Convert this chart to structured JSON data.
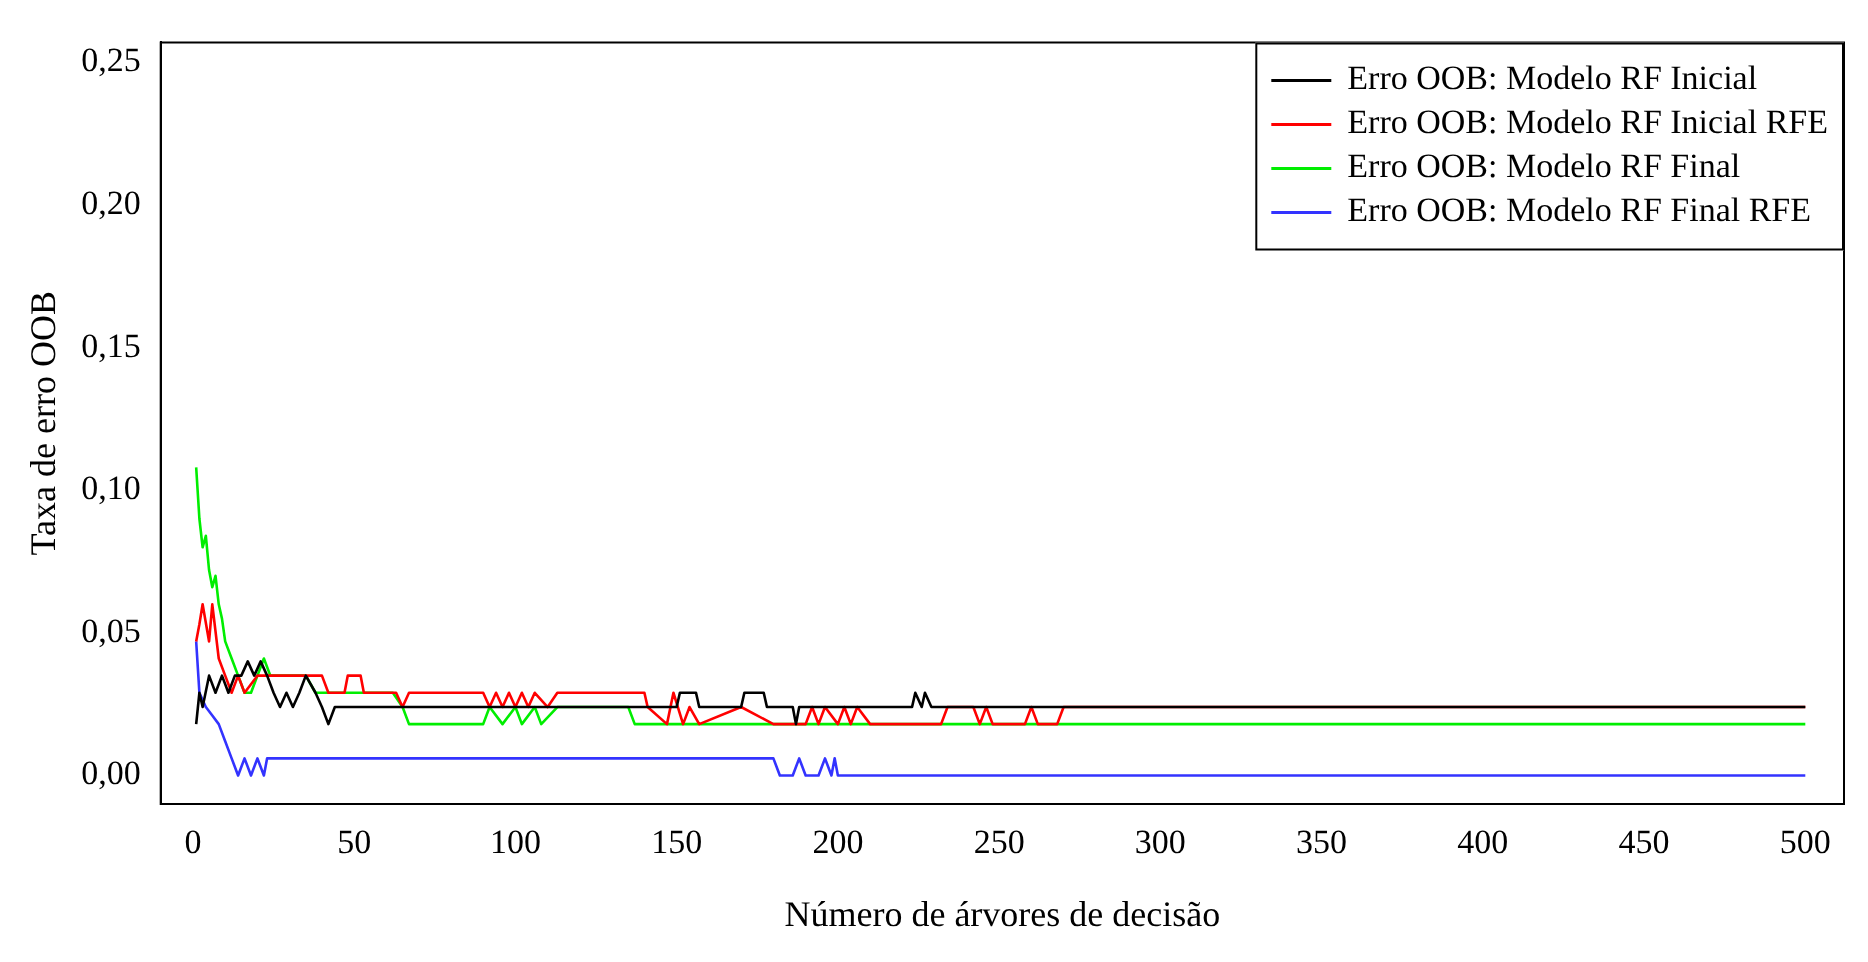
{
  "chart_data": {
    "type": "line",
    "xlabel": "Número de árvores de decisão",
    "ylabel": "Taxa de erro OOB",
    "xlim": [
      -10,
      512
    ],
    "ylim": [
      -0.01,
      0.257
    ],
    "xticks": [
      0,
      50,
      100,
      150,
      200,
      250,
      300,
      350,
      400,
      450,
      500
    ],
    "yticks": [
      {
        "value": 0,
        "label": "0,00"
      },
      {
        "value": 0.05,
        "label": "0,05"
      },
      {
        "value": 0.1,
        "label": "0,10"
      },
      {
        "value": 0.15,
        "label": "0,15"
      },
      {
        "value": 0.2,
        "label": "0,20"
      },
      {
        "value": 0.25,
        "label": "0,25"
      }
    ],
    "legend": "top right",
    "grid": false,
    "marker": "none",
    "line_style": "solid",
    "series": [
      {
        "name": "Erro OOB: Modelo RF Inicial",
        "color": "#000000",
        "x": [
          1,
          2,
          3,
          5,
          7,
          9,
          11,
          13,
          15,
          17,
          19,
          21,
          23,
          25,
          27,
          29,
          31,
          33,
          35,
          38,
          40,
          42,
          44,
          48,
          150,
          151,
          156,
          157,
          170,
          171,
          177,
          178,
          186,
          187,
          188,
          223,
          224,
          226,
          227,
          229,
          500
        ],
        "values": [
          0.018,
          0.029,
          0.024,
          0.035,
          0.029,
          0.035,
          0.029,
          0.035,
          0.035,
          0.04,
          0.035,
          0.04,
          0.035,
          0.029,
          0.024,
          0.029,
          0.024,
          0.029,
          0.035,
          0.029,
          0.024,
          0.018,
          0.024,
          0.024,
          0.024,
          0.029,
          0.029,
          0.024,
          0.024,
          0.029,
          0.029,
          0.024,
          0.024,
          0.018,
          0.024,
          0.024,
          0.029,
          0.024,
          0.029,
          0.024,
          0.024
        ]
      },
      {
        "name": "Erro OOB: Modelo RF Inicial RFE",
        "color": "#ff0000",
        "x": [
          1,
          2,
          3,
          5,
          6,
          8,
          10,
          12,
          14,
          16,
          20,
          40,
          42,
          47,
          48,
          52,
          53,
          63,
          65,
          67,
          90,
          92,
          94,
          96,
          98,
          100,
          102,
          104,
          106,
          110,
          113,
          140,
          141,
          147,
          149,
          152,
          154,
          157,
          170,
          180,
          190,
          192,
          194,
          196,
          200,
          202,
          204,
          206,
          210,
          232,
          234,
          242,
          244,
          246,
          248,
          258,
          260,
          262,
          268,
          270,
          500
        ],
        "values": [
          0.047,
          0.053,
          0.06,
          0.047,
          0.06,
          0.041,
          0.035,
          0.029,
          0.035,
          0.029,
          0.035,
          0.035,
          0.029,
          0.029,
          0.035,
          0.035,
          0.029,
          0.029,
          0.024,
          0.029,
          0.029,
          0.024,
          0.029,
          0.024,
          0.029,
          0.024,
          0.029,
          0.024,
          0.029,
          0.024,
          0.029,
          0.029,
          0.024,
          0.018,
          0.029,
          0.018,
          0.024,
          0.018,
          0.024,
          0.018,
          0.018,
          0.024,
          0.018,
          0.024,
          0.018,
          0.024,
          0.018,
          0.024,
          0.018,
          0.018,
          0.024,
          0.024,
          0.018,
          0.024,
          0.018,
          0.018,
          0.024,
          0.018,
          0.018,
          0.024,
          0.024
        ]
      },
      {
        "name": "Erro OOB: Modelo RF Final",
        "color": "#00ee00",
        "x": [
          1,
          2,
          3,
          4,
          5,
          6,
          7,
          8,
          9,
          10,
          12,
          14,
          16,
          18,
          20,
          22,
          24,
          35,
          38,
          62,
          65,
          67,
          90,
          92,
          96,
          100,
          102,
          106,
          108,
          113,
          135,
          137,
          500
        ],
        "values": [
          0.108,
          0.09,
          0.08,
          0.084,
          0.072,
          0.066,
          0.07,
          0.06,
          0.055,
          0.047,
          0.041,
          0.035,
          0.029,
          0.029,
          0.035,
          0.041,
          0.035,
          0.035,
          0.029,
          0.029,
          0.024,
          0.018,
          0.018,
          0.024,
          0.018,
          0.024,
          0.018,
          0.024,
          0.018,
          0.024,
          0.024,
          0.018,
          0.018
        ]
      },
      {
        "name": "Erro OOB: Modelo RF Final RFE",
        "color": "#3333ff",
        "x": [
          1,
          2,
          4,
          6,
          8,
          10,
          12,
          14,
          16,
          18,
          20,
          22,
          23,
          180,
          182,
          186,
          188,
          190,
          194,
          196,
          198,
          199,
          200,
          500
        ],
        "values": [
          0.047,
          0.029,
          0.024,
          0.021,
          0.018,
          0.012,
          0.006,
          0,
          0.006,
          0,
          0.006,
          0,
          0.006,
          0.006,
          0,
          0,
          0.006,
          0,
          0,
          0.006,
          0,
          0.006,
          0,
          0
        ]
      }
    ]
  }
}
